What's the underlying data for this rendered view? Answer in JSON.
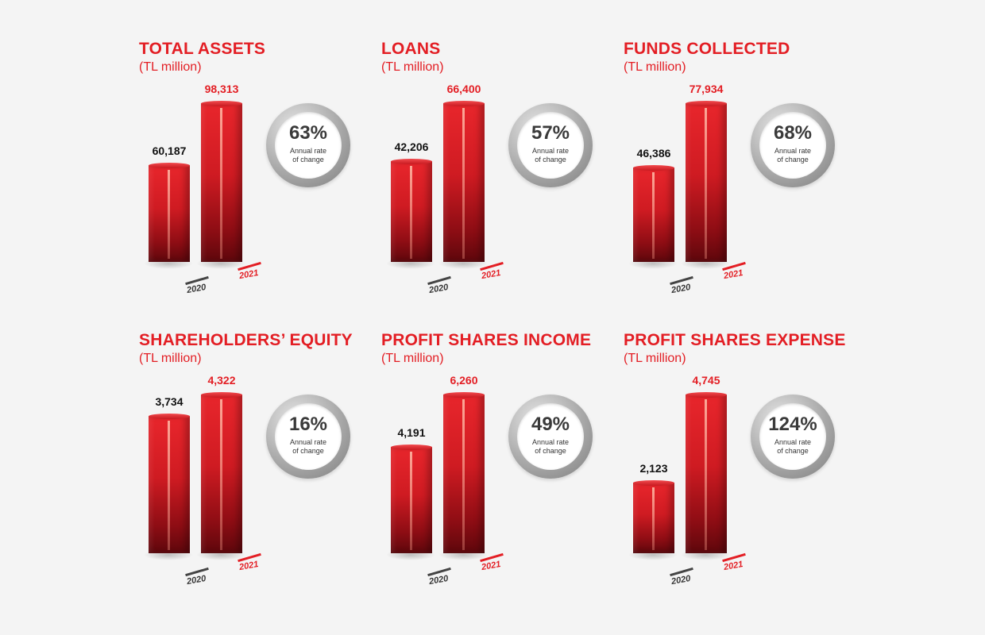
{
  "chart_data": [
    {
      "type": "bar",
      "title": "TOTAL ASSETS",
      "subtitle": "(TL million)",
      "categories": [
        "2020",
        "2021"
      ],
      "values": [
        60187,
        98313
      ],
      "value_labels": [
        "60,187",
        "98,313"
      ],
      "rate": "63%",
      "rate_label": "Annual rate of change"
    },
    {
      "type": "bar",
      "title": "LOANS",
      "subtitle": "(TL million)",
      "categories": [
        "2020",
        "2021"
      ],
      "values": [
        42206,
        66400
      ],
      "value_labels": [
        "42,206",
        "66,400"
      ],
      "rate": "57%",
      "rate_label": "Annual rate of change"
    },
    {
      "type": "bar",
      "title": "FUNDS COLLECTED",
      "subtitle": "(TL million)",
      "categories": [
        "2020",
        "2021"
      ],
      "values": [
        46386,
        77934
      ],
      "value_labels": [
        "46,386",
        "77,934"
      ],
      "rate": "68%",
      "rate_label": "Annual rate of change"
    },
    {
      "type": "bar",
      "title": "SHAREHOLDERS’ EQUITY",
      "subtitle": "(TL million)",
      "categories": [
        "2020",
        "2021"
      ],
      "values": [
        3734,
        4322
      ],
      "value_labels": [
        "3,734",
        "4,322"
      ],
      "rate": "16%",
      "rate_label": "Annual rate of change"
    },
    {
      "type": "bar",
      "title": "PROFIT SHARES INCOME",
      "subtitle": "(TL million)",
      "categories": [
        "2020",
        "2021"
      ],
      "values": [
        4191,
        6260
      ],
      "value_labels": [
        "4,191",
        "6,260"
      ],
      "rate": "49%",
      "rate_label": "Annual rate of change"
    },
    {
      "type": "bar",
      "title": "PROFIT SHARES EXPENSE",
      "subtitle": "(TL million)",
      "categories": [
        "2020",
        "2021"
      ],
      "values": [
        2123,
        4745
      ],
      "value_labels": [
        "2,123",
        "4,745"
      ],
      "rate": "124%",
      "rate_label": "Annual rate of change"
    }
  ],
  "colors": {
    "accent": "#e31e24",
    "dark": "#333333",
    "ring": "#a9a9a9"
  }
}
